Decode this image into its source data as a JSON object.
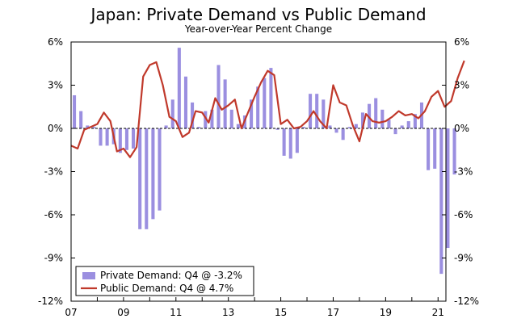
{
  "chart_data": {
    "type": "bar",
    "title": "Japan: Private Demand vs Public Demand",
    "subtitle": "Year-over-Year Percent Change",
    "ylim": [
      -12,
      6
    ],
    "yticks": [
      6,
      3,
      0,
      -3,
      -6,
      -9,
      -12
    ],
    "ytick_labels": [
      "6%",
      "3%",
      "0%",
      "-3%",
      "-6%",
      "-9%",
      "-12%"
    ],
    "xlim": [
      2007,
      2021.3
    ],
    "xticks": [
      2007,
      2009,
      2011,
      2013,
      2015,
      2017,
      2019,
      2021
    ],
    "xtick_labels": [
      "07",
      "09",
      "11",
      "13",
      "15",
      "17",
      "19",
      "21"
    ],
    "grid": false,
    "legend_position": "bottom-left",
    "series": [
      {
        "name": "Private Demand: Q4 @ -3.2%",
        "type": "bar",
        "color": "#9b8fe0",
        "start": 2007.125,
        "step": 0.25,
        "values": [
          2.3,
          1.2,
          0.2,
          0.1,
          -1.2,
          -1.2,
          -1.1,
          -1.7,
          -1.5,
          -1.4,
          -7.0,
          -7.0,
          -6.3,
          -5.7,
          0.2,
          2.0,
          5.6,
          3.6,
          1.8,
          0.1,
          1.2,
          1.3,
          4.4,
          3.4,
          1.3,
          0.3,
          0.9,
          2.0,
          2.9,
          3.5,
          4.2,
          -0.1,
          -1.9,
          -2.1,
          -1.7,
          0.1,
          2.4,
          2.4,
          2.0,
          0.2,
          -0.3,
          -0.8,
          0.1,
          0.3,
          1.1,
          1.7,
          2.1,
          1.3,
          0.6,
          -0.4,
          0.2,
          0.5,
          1.0,
          1.8,
          -2.9,
          -2.8,
          -10.1,
          -8.3,
          -3.2
        ]
      },
      {
        "name": "Public Demand: Q4 @ 4.7%",
        "type": "line",
        "color": "#c0392b",
        "start": 2007.0,
        "step": 0.25,
        "values": [
          -1.2,
          -1.4,
          -0.1,
          0.1,
          0.3,
          1.1,
          0.5,
          -1.6,
          -1.4,
          -2.0,
          -1.3,
          3.6,
          4.4,
          4.6,
          3.0,
          0.8,
          0.5,
          -0.6,
          -0.3,
          1.2,
          1.1,
          0.4,
          2.1,
          1.3,
          1.6,
          2.0,
          0.0,
          1.1,
          2.2,
          3.2,
          4.0,
          3.7,
          0.3,
          0.6,
          0.0,
          0.1,
          0.5,
          1.2,
          0.5,
          0.0,
          3.0,
          1.8,
          1.6,
          0.2,
          -0.9,
          1.0,
          0.5,
          0.4,
          0.5,
          0.8,
          1.2,
          0.9,
          1.0,
          0.7,
          1.2,
          2.2,
          2.6,
          1.5,
          1.9,
          3.5,
          4.7
        ]
      }
    ]
  }
}
